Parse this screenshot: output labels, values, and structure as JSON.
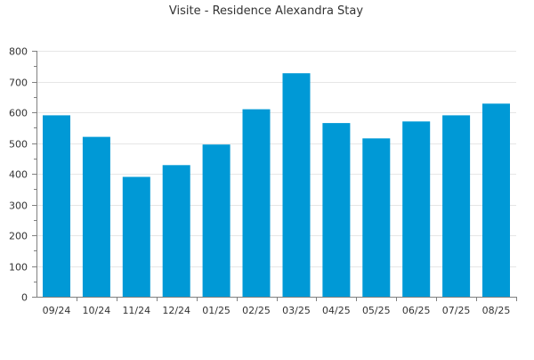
{
  "chart_data": {
    "type": "bar",
    "title": "Visite - Residence Alexandra Stay",
    "xlabel": "",
    "ylabel": "",
    "categories": [
      "09/24",
      "10/24",
      "11/24",
      "12/24",
      "01/25",
      "02/25",
      "03/25",
      "04/25",
      "05/25",
      "06/25",
      "07/25",
      "08/25"
    ],
    "values": [
      590,
      520,
      390,
      428,
      495,
      610,
      727,
      565,
      515,
      570,
      590,
      628
    ],
    "ylim": [
      0,
      800
    ],
    "yticks": [
      0,
      100,
      200,
      300,
      400,
      500,
      600,
      700,
      800
    ],
    "grid": true,
    "legend": "none",
    "bar_color": "#0099d6"
  }
}
